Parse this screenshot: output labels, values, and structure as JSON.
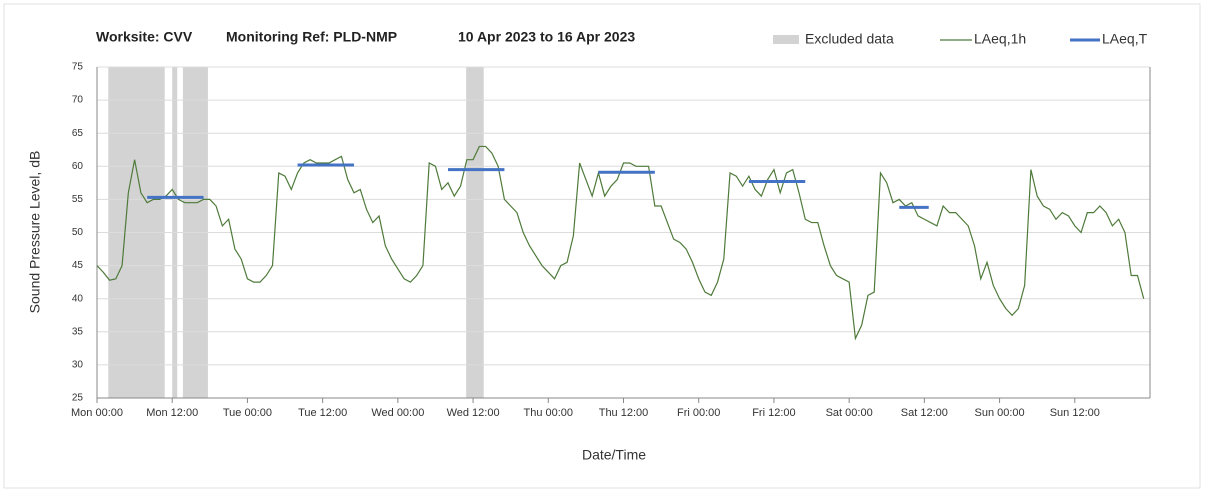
{
  "chart_data": {
    "type": "line",
    "title_parts": [
      "Worksite: CVV",
      "Monitoring Ref: PLD-NMP",
      "10 Apr 2023 to 16 Apr 2023"
    ],
    "x_label": "Date/Time",
    "y_label": "Sound Pressure Level, dB",
    "xlim": [
      0,
      168
    ],
    "xticks": [
      {
        "value": 0,
        "label": "Mon 00:00"
      },
      {
        "value": 12,
        "label": "Mon 12:00"
      },
      {
        "value": 24,
        "label": "Tue 00:00"
      },
      {
        "value": 36,
        "label": "Tue 12:00"
      },
      {
        "value": 48,
        "label": "Wed 00:00"
      },
      {
        "value": 60,
        "label": "Wed 12:00"
      },
      {
        "value": 72,
        "label": "Thu 00:00"
      },
      {
        "value": 84,
        "label": "Thu 12:00"
      },
      {
        "value": 96,
        "label": "Fri 00:00"
      },
      {
        "value": 108,
        "label": "Fri 12:00"
      },
      {
        "value": 120,
        "label": "Sat 00:00"
      },
      {
        "value": 132,
        "label": "Sat 12:00"
      },
      {
        "value": 144,
        "label": "Sun 00:00"
      },
      {
        "value": 156,
        "label": "Sun 12:00"
      }
    ],
    "ylim": [
      25,
      75
    ],
    "yticks": [
      25,
      30,
      35,
      40,
      45,
      50,
      55,
      60,
      65,
      70,
      75
    ],
    "grid": true,
    "excluded": {
      "name": "Excluded data",
      "color": "#d3d3d3",
      "ranges": [
        [
          1.8,
          10.8
        ],
        [
          12,
          12.8
        ],
        [
          13.7,
          17.7
        ],
        [
          58.9,
          61.7
        ]
      ]
    },
    "series": [
      {
        "name": "LAeq,1h",
        "color": "#4e7a3a",
        "x": [
          0,
          1,
          2,
          3,
          4,
          5,
          6,
          7,
          8,
          9,
          10,
          11,
          12,
          13,
          14,
          15,
          16,
          17,
          18,
          19,
          20,
          21,
          22,
          23,
          24,
          25,
          26,
          27,
          28,
          29,
          30,
          31,
          32,
          33,
          34,
          35,
          36,
          37,
          38,
          39,
          40,
          41,
          42,
          43,
          44,
          45,
          46,
          47,
          48,
          49,
          50,
          51,
          52,
          53,
          54,
          55,
          56,
          57,
          58,
          59,
          60,
          61,
          62,
          63,
          64,
          65,
          66,
          67,
          68,
          69,
          70,
          71,
          72,
          73,
          74,
          75,
          76,
          77,
          78,
          79,
          80,
          81,
          82,
          83,
          84,
          85,
          86,
          87,
          88,
          89,
          90,
          91,
          92,
          93,
          94,
          95,
          96,
          97,
          98,
          99,
          100,
          101,
          102,
          103,
          104,
          105,
          106,
          107,
          108,
          109,
          110,
          111,
          112,
          113,
          114,
          115,
          116,
          117,
          118,
          119,
          120,
          121,
          122,
          123,
          124,
          125,
          126,
          127,
          128,
          129,
          130,
          131,
          132,
          133,
          134,
          135,
          136,
          137,
          138,
          139,
          140,
          141,
          142,
          143,
          144,
          145,
          146,
          147,
          148,
          149,
          150,
          151,
          152,
          153,
          154,
          155,
          156,
          157,
          158,
          159,
          160,
          161,
          162,
          163,
          164,
          165,
          166,
          167
        ],
        "values": [
          45,
          44,
          42.8,
          43,
          45,
          56,
          61,
          56,
          54.5,
          55,
          55,
          55.5,
          56.5,
          55,
          54.5,
          54.5,
          54.5,
          55,
          55,
          54,
          51,
          52,
          47.5,
          46,
          43,
          42.5,
          42.5,
          43.5,
          45,
          59,
          58.5,
          56.5,
          59,
          60.5,
          61,
          60.5,
          60.5,
          60.5,
          61,
          61.5,
          58,
          56,
          56.5,
          53.5,
          51.5,
          52.5,
          48,
          46,
          44.5,
          43,
          42.5,
          43.5,
          45,
          60.5,
          60,
          56.5,
          57.5,
          55.5,
          57,
          61,
          61,
          63,
          63,
          62,
          60,
          55,
          54,
          53,
          50,
          48,
          46.5,
          45,
          44,
          43,
          45,
          45.5,
          49.5,
          60.5,
          58,
          55.5,
          59,
          55.5,
          57,
          58,
          60.5,
          60.5,
          60,
          60,
          60,
          54,
          54,
          51.5,
          49,
          48.5,
          47.5,
          45.5,
          43,
          41,
          40.5,
          42.5,
          46,
          59,
          58.5,
          57,
          58.5,
          56.5,
          55.5,
          58,
          59.5,
          56,
          59,
          59.5,
          56,
          52,
          51.5,
          51.5,
          48,
          45,
          43.5,
          43,
          42.5,
          34,
          36,
          40.5,
          41,
          59,
          57.5,
          54.5,
          55,
          54,
          54.5,
          52.5,
          52,
          51.5,
          51,
          54,
          53,
          53,
          52,
          51,
          48,
          43,
          45.5,
          42,
          40,
          38.5,
          37.5,
          38.5,
          42,
          59.5,
          55.5,
          54,
          53.5,
          52,
          53,
          52.5,
          51,
          50,
          53,
          53,
          54,
          53,
          51,
          52,
          50,
          43.5,
          43.5,
          40
        ]
      },
      {
        "name": "LAeq,T",
        "color": "#4472c4",
        "segments": [
          {
            "x": [
              8,
              17
            ],
            "value": 55.3
          },
          {
            "x": [
              32,
              41
            ],
            "value": 60.2
          },
          {
            "x": [
              56,
              65
            ],
            "value": 59.5
          },
          {
            "x": [
              80,
              89
            ],
            "value": 59.1
          },
          {
            "x": [
              104,
              113
            ],
            "value": 57.7
          },
          {
            "x": [
              128,
              132.7
            ],
            "value": 53.8
          }
        ]
      }
    ]
  }
}
